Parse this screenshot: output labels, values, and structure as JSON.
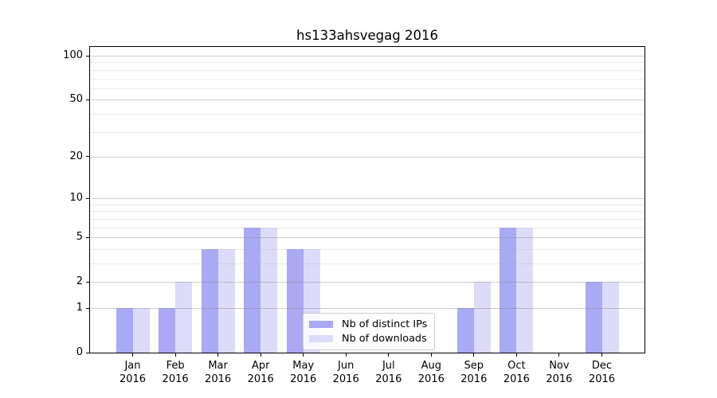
{
  "figure": {
    "title": "hs133ahsvegag 2016"
  },
  "legend": {
    "items": [
      {
        "label": "Nb of distinct IPs",
        "color": "#a9a9f5"
      },
      {
        "label": "Nb of downloads",
        "color": "#dcdcf8"
      }
    ]
  },
  "chart_data": {
    "type": "bar",
    "title": "hs133ahsvegag 2016",
    "categories": [
      "Jan",
      "Feb",
      "Mar",
      "Apr",
      "May",
      "Jun",
      "Jul",
      "Aug",
      "Sep",
      "Oct",
      "Nov",
      "Dec"
    ],
    "year_label": "2016",
    "series": [
      {
        "name": "Nb of distinct IPs",
        "color": "#a9a9f5",
        "values": [
          1,
          1,
          4,
          6,
          4,
          0,
          0,
          0,
          1,
          6,
          0,
          2
        ]
      },
      {
        "name": "Nb of downloads",
        "color": "#dcdcf8",
        "values": [
          1,
          2,
          4,
          6,
          4,
          0,
          0,
          0,
          2,
          6,
          0,
          2
        ]
      }
    ],
    "xlabel": "",
    "ylabel": "",
    "yscale": "log10(1+v)",
    "ylim": [
      0,
      115
    ],
    "y_major_ticks": [
      0,
      1,
      2,
      5,
      10,
      20,
      50,
      100
    ],
    "y_minor_gridlines": [
      3,
      4,
      6,
      7,
      8,
      9,
      30,
      40,
      60,
      70,
      80,
      90
    ],
    "grid": true,
    "legend_position": "lower center",
    "bar_group": "side-by-side"
  }
}
